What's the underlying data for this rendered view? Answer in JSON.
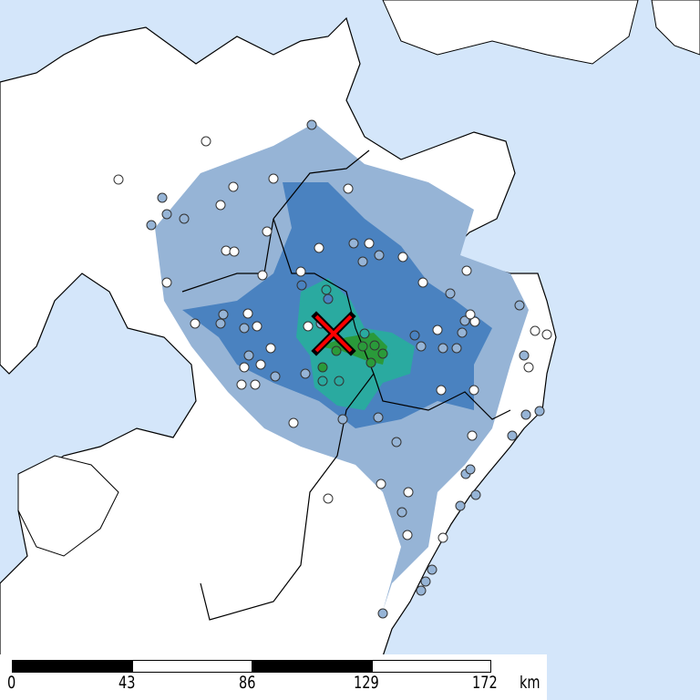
{
  "map": {
    "colors": {
      "sea": "#d4e6fa",
      "land": "#ffffff",
      "intensity_low": "#96b4d6",
      "intensity_mid": "#4a82c0",
      "intensity_high": "#2aaaa0",
      "intensity_top": "#2a9a3a",
      "epicenter": "#ff0000"
    },
    "epicenter_icon": "x-mark-icon"
  },
  "scale_bar": {
    "labels": [
      "0",
      "43",
      "86",
      "129",
      "172"
    ],
    "unit": "km"
  }
}
